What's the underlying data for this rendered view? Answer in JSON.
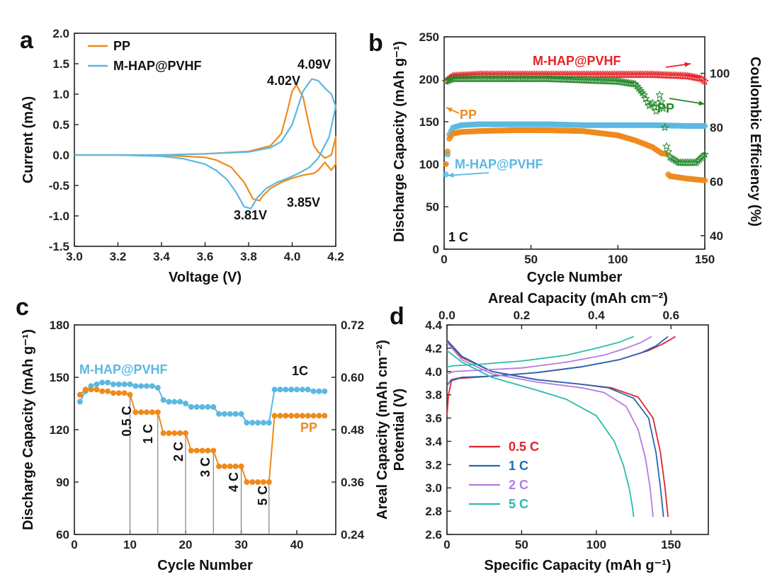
{
  "colors": {
    "orange": "#EE8A1C",
    "blue": "#5BB8E2",
    "red": "#E62226",
    "green": "#22882A",
    "c05": "#D9262C",
    "c1": "#2568B3",
    "c2": "#B57BE0",
    "c5": "#2ABBAA"
  },
  "chart_data": [
    {
      "panel": "a",
      "type": "line",
      "xlabel": "Voltage (V)",
      "ylabel": "Current (mA)",
      "xlim": [
        3.0,
        4.2
      ],
      "ylim": [
        -1.5,
        2.0
      ],
      "xticks": [
        "3.0",
        "3.2",
        "3.4",
        "3.6",
        "3.8",
        "4.0",
        "4.2"
      ],
      "yticks": [
        "-1.5",
        "-1.0",
        "-0.5",
        "0.0",
        "0.5",
        "1.0",
        "1.5",
        "2.0"
      ],
      "legend": [
        "PP",
        "M-HAP@PVHF"
      ],
      "annotations": [
        {
          "text": "4.02V",
          "x": 4.02,
          "y": 1.15
        },
        {
          "text": "4.09V",
          "x": 4.09,
          "y": 1.25
        },
        {
          "text": "3.85V",
          "x": 3.85,
          "y": -0.75
        },
        {
          "text": "3.81V",
          "x": 3.81,
          "y": -0.88
        }
      ],
      "series": [
        {
          "name": "PP",
          "color": "orange",
          "x": [
            3.0,
            3.4,
            3.6,
            3.8,
            3.9,
            3.95,
            3.98,
            4.0,
            4.02,
            4.05,
            4.08,
            4.1,
            4.12,
            4.15,
            4.18,
            4.2,
            4.2,
            4.18,
            4.15,
            4.12,
            4.1,
            4.05,
            4.0,
            3.95,
            3.9,
            3.87,
            3.85,
            3.82,
            3.78,
            3.72,
            3.65,
            3.6,
            3.5,
            3.4,
            3.2,
            3.0
          ],
          "y": [
            0.0,
            0.0,
            0.02,
            0.06,
            0.15,
            0.35,
            0.75,
            1.05,
            1.15,
            0.95,
            0.45,
            0.15,
            0.05,
            -0.05,
            0.0,
            0.3,
            -0.15,
            -0.25,
            -0.12,
            -0.25,
            -0.3,
            -0.33,
            -0.38,
            -0.45,
            -0.55,
            -0.65,
            -0.75,
            -0.72,
            -0.45,
            -0.2,
            -0.08,
            -0.04,
            -0.02,
            0.0,
            0.0,
            0.0
          ]
        },
        {
          "name": "M-HAP@PVHF",
          "color": "blue",
          "x": [
            3.0,
            3.4,
            3.6,
            3.8,
            3.9,
            3.95,
            4.0,
            4.05,
            4.09,
            4.12,
            4.15,
            4.18,
            4.2,
            4.2,
            4.17,
            4.12,
            4.08,
            4.03,
            3.98,
            3.93,
            3.88,
            3.84,
            3.81,
            3.78,
            3.74,
            3.7,
            3.65,
            3.6,
            3.5,
            3.4,
            3.2,
            3.0
          ],
          "y": [
            0.0,
            0.0,
            0.02,
            0.05,
            0.12,
            0.22,
            0.5,
            1.05,
            1.25,
            1.22,
            1.1,
            1.0,
            0.8,
            0.8,
            0.3,
            -0.05,
            -0.2,
            -0.3,
            -0.38,
            -0.45,
            -0.55,
            -0.7,
            -0.88,
            -0.85,
            -0.6,
            -0.4,
            -0.25,
            -0.15,
            -0.06,
            -0.02,
            0.0,
            0.0
          ]
        }
      ]
    },
    {
      "panel": "b",
      "type": "scatter",
      "xlabel": "Cycle Number",
      "ylabel": "Discharge Capacity (mAh g⁻¹)",
      "y2label": "Coulombic Efficiency (%)",
      "xlim": [
        0,
        150
      ],
      "ylim": [
        0,
        250
      ],
      "y2lim": [
        35,
        113.5
      ],
      "xticks": [
        "0",
        "50",
        "100",
        "150"
      ],
      "yticks": [
        "0",
        "50",
        "100",
        "150",
        "200",
        "250"
      ],
      "y2ticks": [
        "40",
        "60",
        "80",
        "100"
      ],
      "labels": [
        "M-HAP@PVHF",
        "PP",
        "PP",
        "M-HAP@PVHF",
        "1 C"
      ],
      "series": [
        {
          "name": "M-HAP@PVHF",
          "kind": "capacity",
          "color": "blue",
          "x": [
            1,
            3,
            5,
            10,
            20,
            40,
            60,
            80,
            100,
            120,
            140,
            150
          ],
          "y": [
            88,
            135,
            143,
            146,
            147,
            147,
            147,
            146,
            146,
            146,
            145,
            145
          ]
        },
        {
          "name": "PP",
          "kind": "capacity",
          "color": "orange",
          "x": [
            1,
            3,
            5,
            10,
            20,
            40,
            60,
            80,
            100,
            110,
            120,
            125,
            128,
            129,
            130,
            140,
            150
          ],
          "y": [
            100,
            130,
            136,
            138,
            139,
            140,
            140,
            139,
            134,
            128,
            120,
            113,
            112,
            88,
            86,
            83,
            81
          ]
        },
        {
          "name": "M-HAP@PVHF",
          "kind": "CE",
          "color": "red",
          "x": [
            1,
            5,
            20,
            40,
            60,
            80,
            100,
            120,
            140,
            148,
            150
          ],
          "y": [
            97,
            99,
            99.5,
            99.5,
            99.5,
            99.5,
            99.5,
            99.5,
            99,
            98,
            97
          ]
        },
        {
          "name": "PP",
          "kind": "CE",
          "color": "green",
          "x": [
            1,
            5,
            20,
            40,
            60,
            80,
            100,
            110,
            115,
            118,
            120,
            122,
            124,
            126,
            128,
            130,
            135,
            140,
            145,
            150
          ],
          "y": [
            97,
            98,
            98,
            98,
            98,
            97.5,
            97,
            96,
            92,
            88,
            89,
            86,
            92,
            87,
            73,
            69,
            67,
            67,
            67,
            70
          ]
        }
      ]
    },
    {
      "panel": "c",
      "type": "line",
      "xlabel": "Cycle Number",
      "ylabel": "Discharge Capacity (mAh g⁻¹)",
      "y2label": "Areal Capacity (mAh cm⁻²)",
      "xlim": [
        0,
        47
      ],
      "ylim": [
        60,
        180
      ],
      "y2lim": [
        0.24,
        0.72
      ],
      "xticks": [
        "0",
        "10",
        "20",
        "30",
        "40"
      ],
      "yticks": [
        "60",
        "90",
        "120",
        "150",
        "180"
      ],
      "y2ticks": [
        "0.24",
        "0.36",
        "0.48",
        "0.60",
        "0.72"
      ],
      "rate_labels": [
        {
          "text": "0.5 C",
          "x": 9
        },
        {
          "text": "1 C",
          "x": 13.5
        },
        {
          "text": "2 C",
          "x": 18.5
        },
        {
          "text": "3 C",
          "x": 23.5
        },
        {
          "text": "4 C",
          "x": 28.5
        },
        {
          "text": "5 C",
          "x": 33.5
        }
      ],
      "dividers": [
        10,
        15,
        20,
        25,
        30,
        35
      ],
      "end_labels": [
        "1C",
        "PP",
        "M-HAP@PVHF"
      ],
      "series": [
        {
          "name": "M-HAP@PVHF",
          "color": "blue",
          "x": [
            1,
            2,
            3,
            4,
            5,
            6,
            7,
            8,
            9,
            10,
            11,
            12,
            13,
            14,
            15,
            16,
            17,
            18,
            19,
            20,
            21,
            22,
            23,
            24,
            25,
            26,
            27,
            28,
            29,
            30,
            31,
            32,
            33,
            34,
            35,
            36,
            37,
            38,
            39,
            40,
            41,
            42,
            43,
            44,
            45
          ],
          "y": [
            136,
            142,
            145,
            146,
            147,
            147,
            146,
            146,
            146,
            146,
            145,
            145,
            145,
            145,
            144,
            137,
            136,
            136,
            136,
            135,
            133,
            133,
            133,
            133,
            133,
            129,
            129,
            129,
            129,
            129,
            124,
            124,
            124,
            124,
            124,
            143,
            143,
            143,
            143,
            143,
            143,
            143,
            142,
            142,
            142
          ]
        },
        {
          "name": "PP",
          "color": "orange",
          "x": [
            1,
            2,
            3,
            4,
            5,
            6,
            7,
            8,
            9,
            10,
            11,
            12,
            13,
            14,
            15,
            16,
            17,
            18,
            19,
            20,
            21,
            22,
            23,
            24,
            25,
            26,
            27,
            28,
            29,
            30,
            31,
            32,
            33,
            34,
            35,
            36,
            37,
            38,
            39,
            40,
            41,
            42,
            43,
            44,
            45
          ],
          "y": [
            140,
            143,
            143,
            143,
            142,
            142,
            141,
            141,
            141,
            140,
            130,
            130,
            130,
            130,
            130,
            118,
            118,
            118,
            118,
            118,
            108,
            108,
            108,
            108,
            108,
            99,
            99,
            99,
            99,
            99,
            90,
            90,
            90,
            90,
            90,
            128,
            128,
            128,
            128,
            128,
            128,
            128,
            128,
            128,
            128
          ]
        }
      ]
    },
    {
      "panel": "d",
      "type": "line",
      "xlabel": "Specific Capacity (mAh g⁻¹)",
      "x2label": "Areal Capacity (mAh cm⁻²)",
      "ylabel": "Potential (V)",
      "xlim": [
        0,
        175
      ],
      "x2lim": [
        0,
        0.7
      ],
      "ylim": [
        2.6,
        4.4
      ],
      "xticks": [
        "0",
        "50",
        "100",
        "150"
      ],
      "x2ticks": [
        "0.0",
        "0.2",
        "0.4",
        "0.6"
      ],
      "yticks": [
        "2.6",
        "2.8",
        "3.0",
        "3.2",
        "3.4",
        "3.6",
        "3.8",
        "4.0",
        "4.2",
        "4.4"
      ],
      "legend": [
        "0.5 C",
        "1 C",
        "2 C",
        "5 C"
      ],
      "series": [
        {
          "name": "0.5 C",
          "color": "c05",
          "charge": {
            "x": [
              0,
              1,
              3,
              8,
              30,
              60,
              90,
              115,
              135,
              145,
              153
            ],
            "y": [
              3.62,
              3.8,
              3.92,
              3.94,
              3.96,
              3.99,
              4.04,
              4.1,
              4.18,
              4.24,
              4.3
            ]
          },
          "discharge": {
            "x": [
              0,
              10,
              30,
              60,
              90,
              110,
              128,
              138,
              143,
              146,
              148
            ],
            "y": [
              4.26,
              4.12,
              4.0,
              3.93,
              3.89,
              3.86,
              3.78,
              3.6,
              3.3,
              3.0,
              2.75
            ]
          }
        },
        {
          "name": "1 C",
          "color": "c1",
          "charge": {
            "x": [
              0,
              3,
              10,
              30,
              60,
              90,
              115,
              130,
              140,
              148
            ],
            "y": [
              3.88,
              3.93,
              3.95,
              3.96,
              3.99,
              4.04,
              4.1,
              4.16,
              4.22,
              4.3
            ]
          },
          "discharge": {
            "x": [
              0,
              10,
              30,
              60,
              90,
              108,
              125,
              135,
              140,
              143,
              145
            ],
            "y": [
              4.27,
              4.13,
              4.0,
              3.93,
              3.89,
              3.86,
              3.77,
              3.6,
              3.3,
              3.0,
              2.75
            ]
          }
        },
        {
          "name": "2 C",
          "color": "c2",
          "charge": {
            "x": [
              0,
              5,
              20,
              50,
              80,
              105,
              120,
              130,
              137
            ],
            "y": [
              3.98,
              4.0,
              4.01,
              4.03,
              4.08,
              4.14,
              4.2,
              4.25,
              4.3
            ]
          },
          "discharge": {
            "x": [
              0,
              10,
              30,
              60,
              90,
              105,
              120,
              128,
              133,
              136,
              138
            ],
            "y": [
              4.25,
              4.1,
              3.98,
              3.91,
              3.86,
              3.82,
              3.7,
              3.5,
              3.25,
              3.0,
              2.75
            ]
          }
        },
        {
          "name": "5 C",
          "color": "c5",
          "charge": {
            "x": [
              0,
              5,
              20,
              50,
              80,
              100,
              115,
              125
            ],
            "y": [
              4.04,
              4.05,
              4.06,
              4.09,
              4.14,
              4.2,
              4.25,
              4.3
            ]
          },
          "discharge": {
            "x": [
              0,
              10,
              30,
              60,
              80,
              100,
              112,
              118,
              122,
              124,
              125
            ],
            "y": [
              4.18,
              4.08,
              3.95,
              3.84,
              3.76,
              3.62,
              3.4,
              3.2,
              3.0,
              2.85,
              2.75
            ]
          }
        }
      ]
    }
  ]
}
